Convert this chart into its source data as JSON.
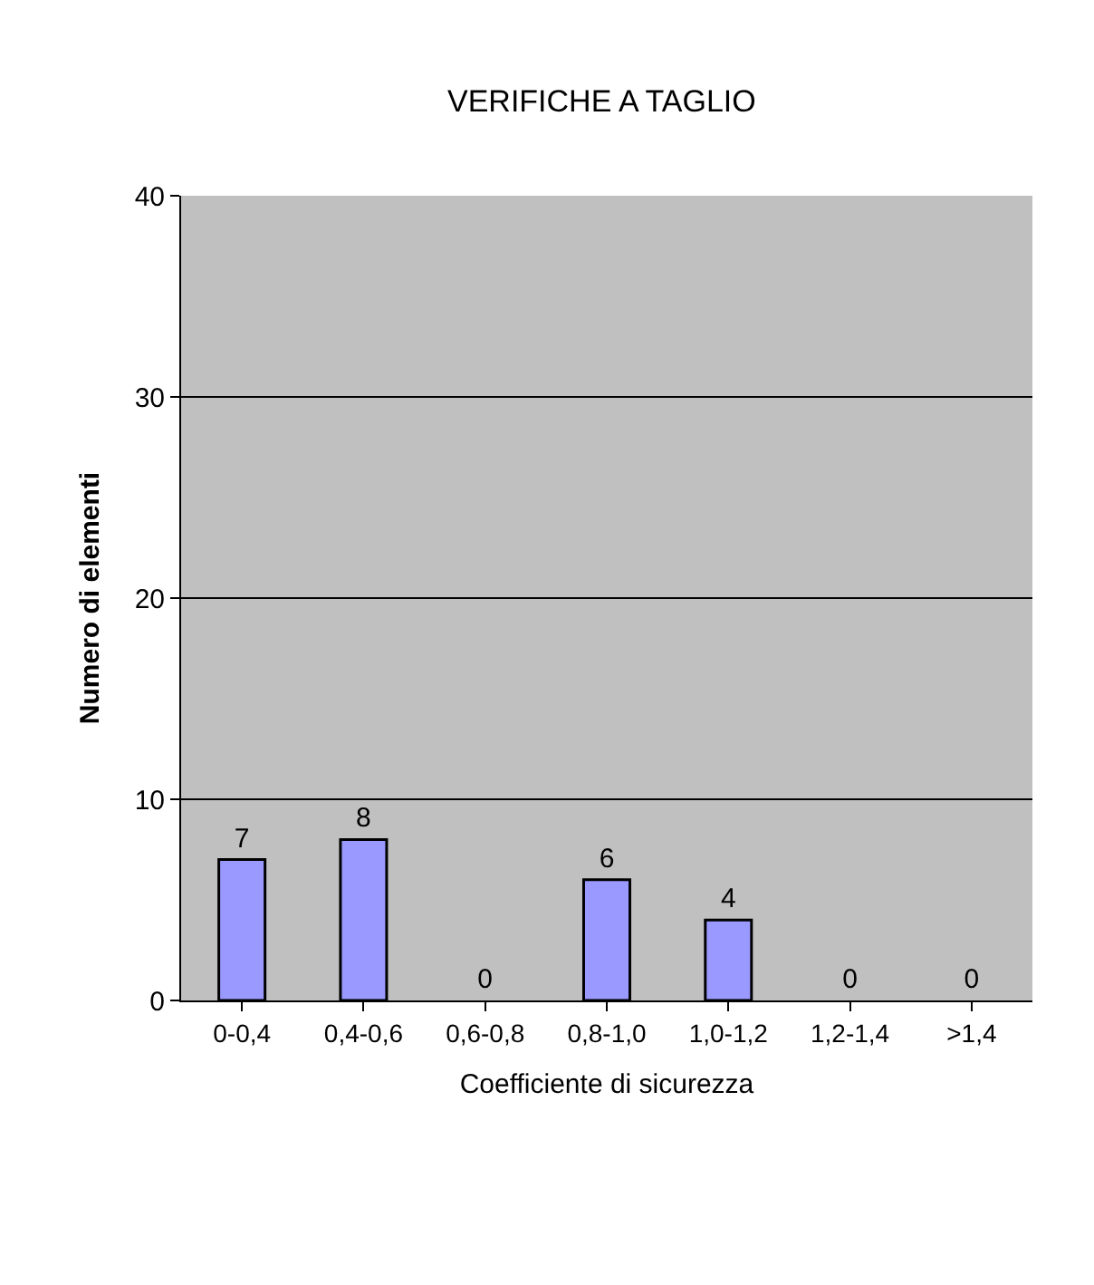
{
  "chart_data": {
    "type": "bar",
    "title": "VERIFICHE A TAGLIO",
    "xlabel": "Coefficiente di sicurezza",
    "ylabel": "Numero di elementi",
    "categories": [
      "0-0,4",
      "0,4-0,6",
      "0,6-0,8",
      "0,8-1,0",
      "1,0-1,2",
      "1,2-1,4",
      ">1,4"
    ],
    "values": [
      7,
      8,
      0,
      6,
      4,
      0,
      0
    ],
    "color": "#9999ff",
    "ylim": [
      0,
      40
    ],
    "yticks": [
      0,
      10,
      20,
      30,
      40
    ],
    "grid": "y",
    "data_labels": true
  }
}
